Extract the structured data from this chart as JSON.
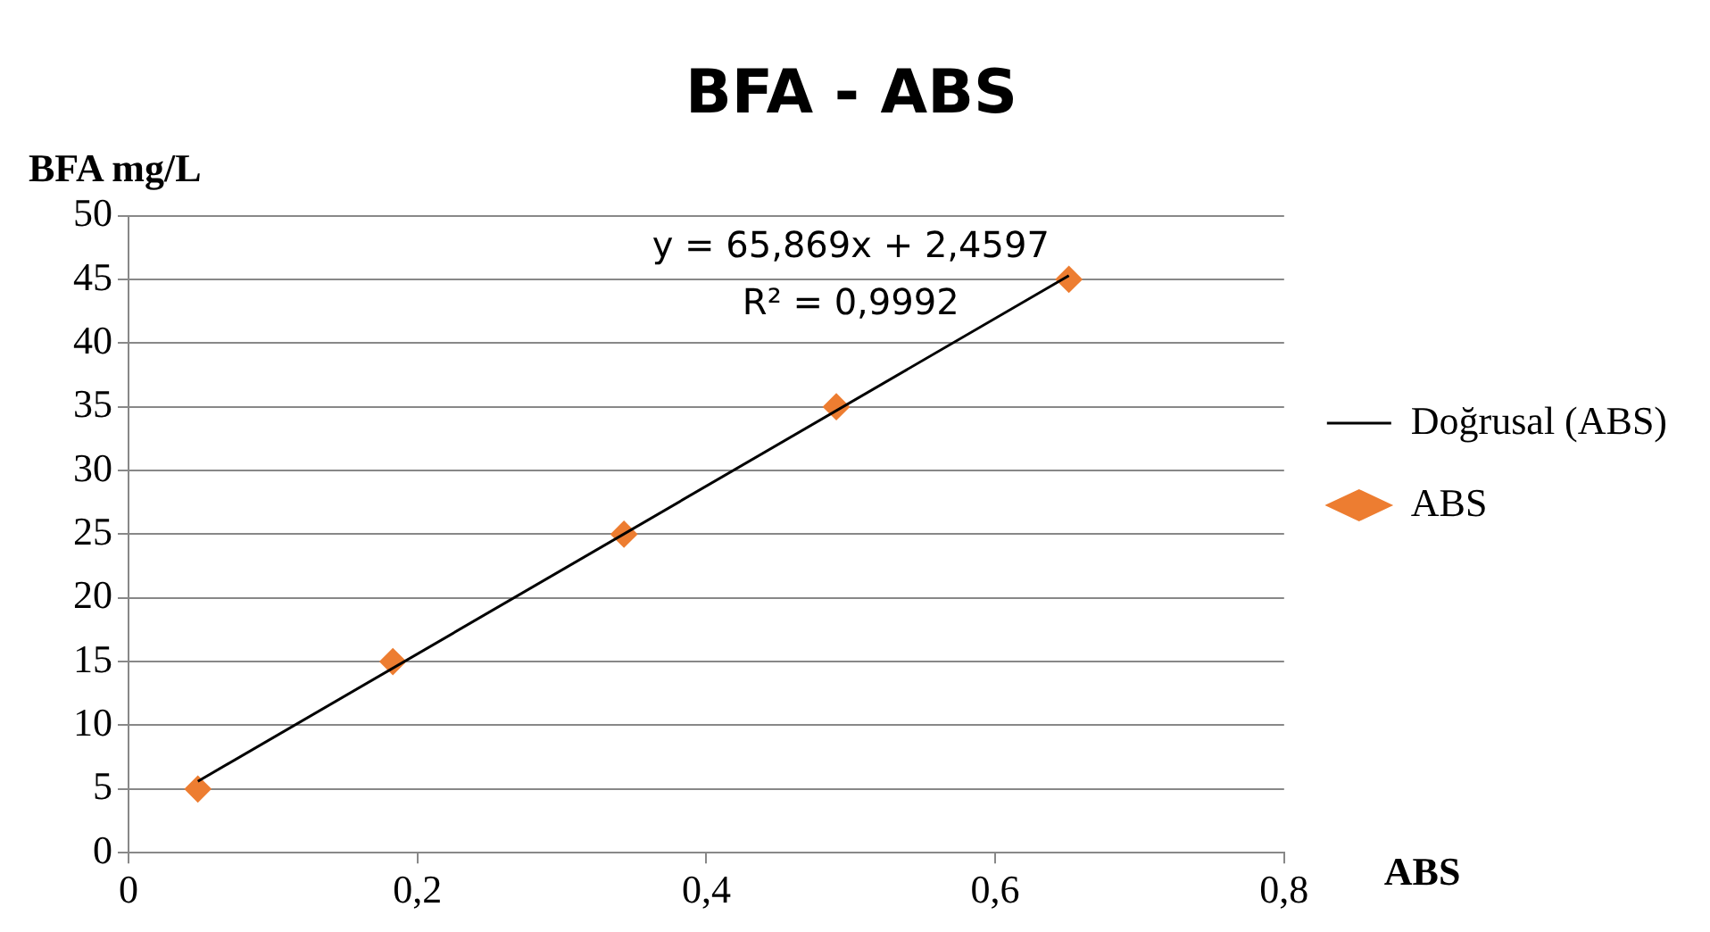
{
  "chart_data": {
    "type": "scatter",
    "title": "BFA - ABS",
    "xlabel": "ABS",
    "ylabel": "BFA mg/L",
    "x": [
      0.048,
      0.183,
      0.343,
      0.49,
      0.651
    ],
    "series": [
      {
        "name": "ABS",
        "color": "#ed7d31",
        "values": [
          5,
          15,
          25,
          35,
          45
        ],
        "marker": "diamond"
      },
      {
        "name": "Doğrusal (ABS)",
        "type": "line",
        "color": "#000000",
        "x": [
          0.048,
          0.651
        ],
        "values": [
          5.6,
          45.3
        ],
        "marker": "none"
      }
    ],
    "xlim": [
      0,
      0.8
    ],
    "xticks": [
      0,
      {
        "value": 0.2,
        "label": "0,2"
      },
      {
        "value": 0.4,
        "label": "0,4"
      },
      {
        "value": 0.6,
        "label": "0,6"
      },
      {
        "value": 0.8,
        "label": "0,8"
      }
    ],
    "ylim": [
      0,
      50
    ],
    "yticks": [
      0,
      5,
      10,
      15,
      20,
      25,
      30,
      35,
      40,
      45,
      50
    ],
    "annotations": [
      "y = 65,869x + 2,4597",
      "R² = 0,9992"
    ],
    "grid": "y",
    "legend": "right"
  }
}
